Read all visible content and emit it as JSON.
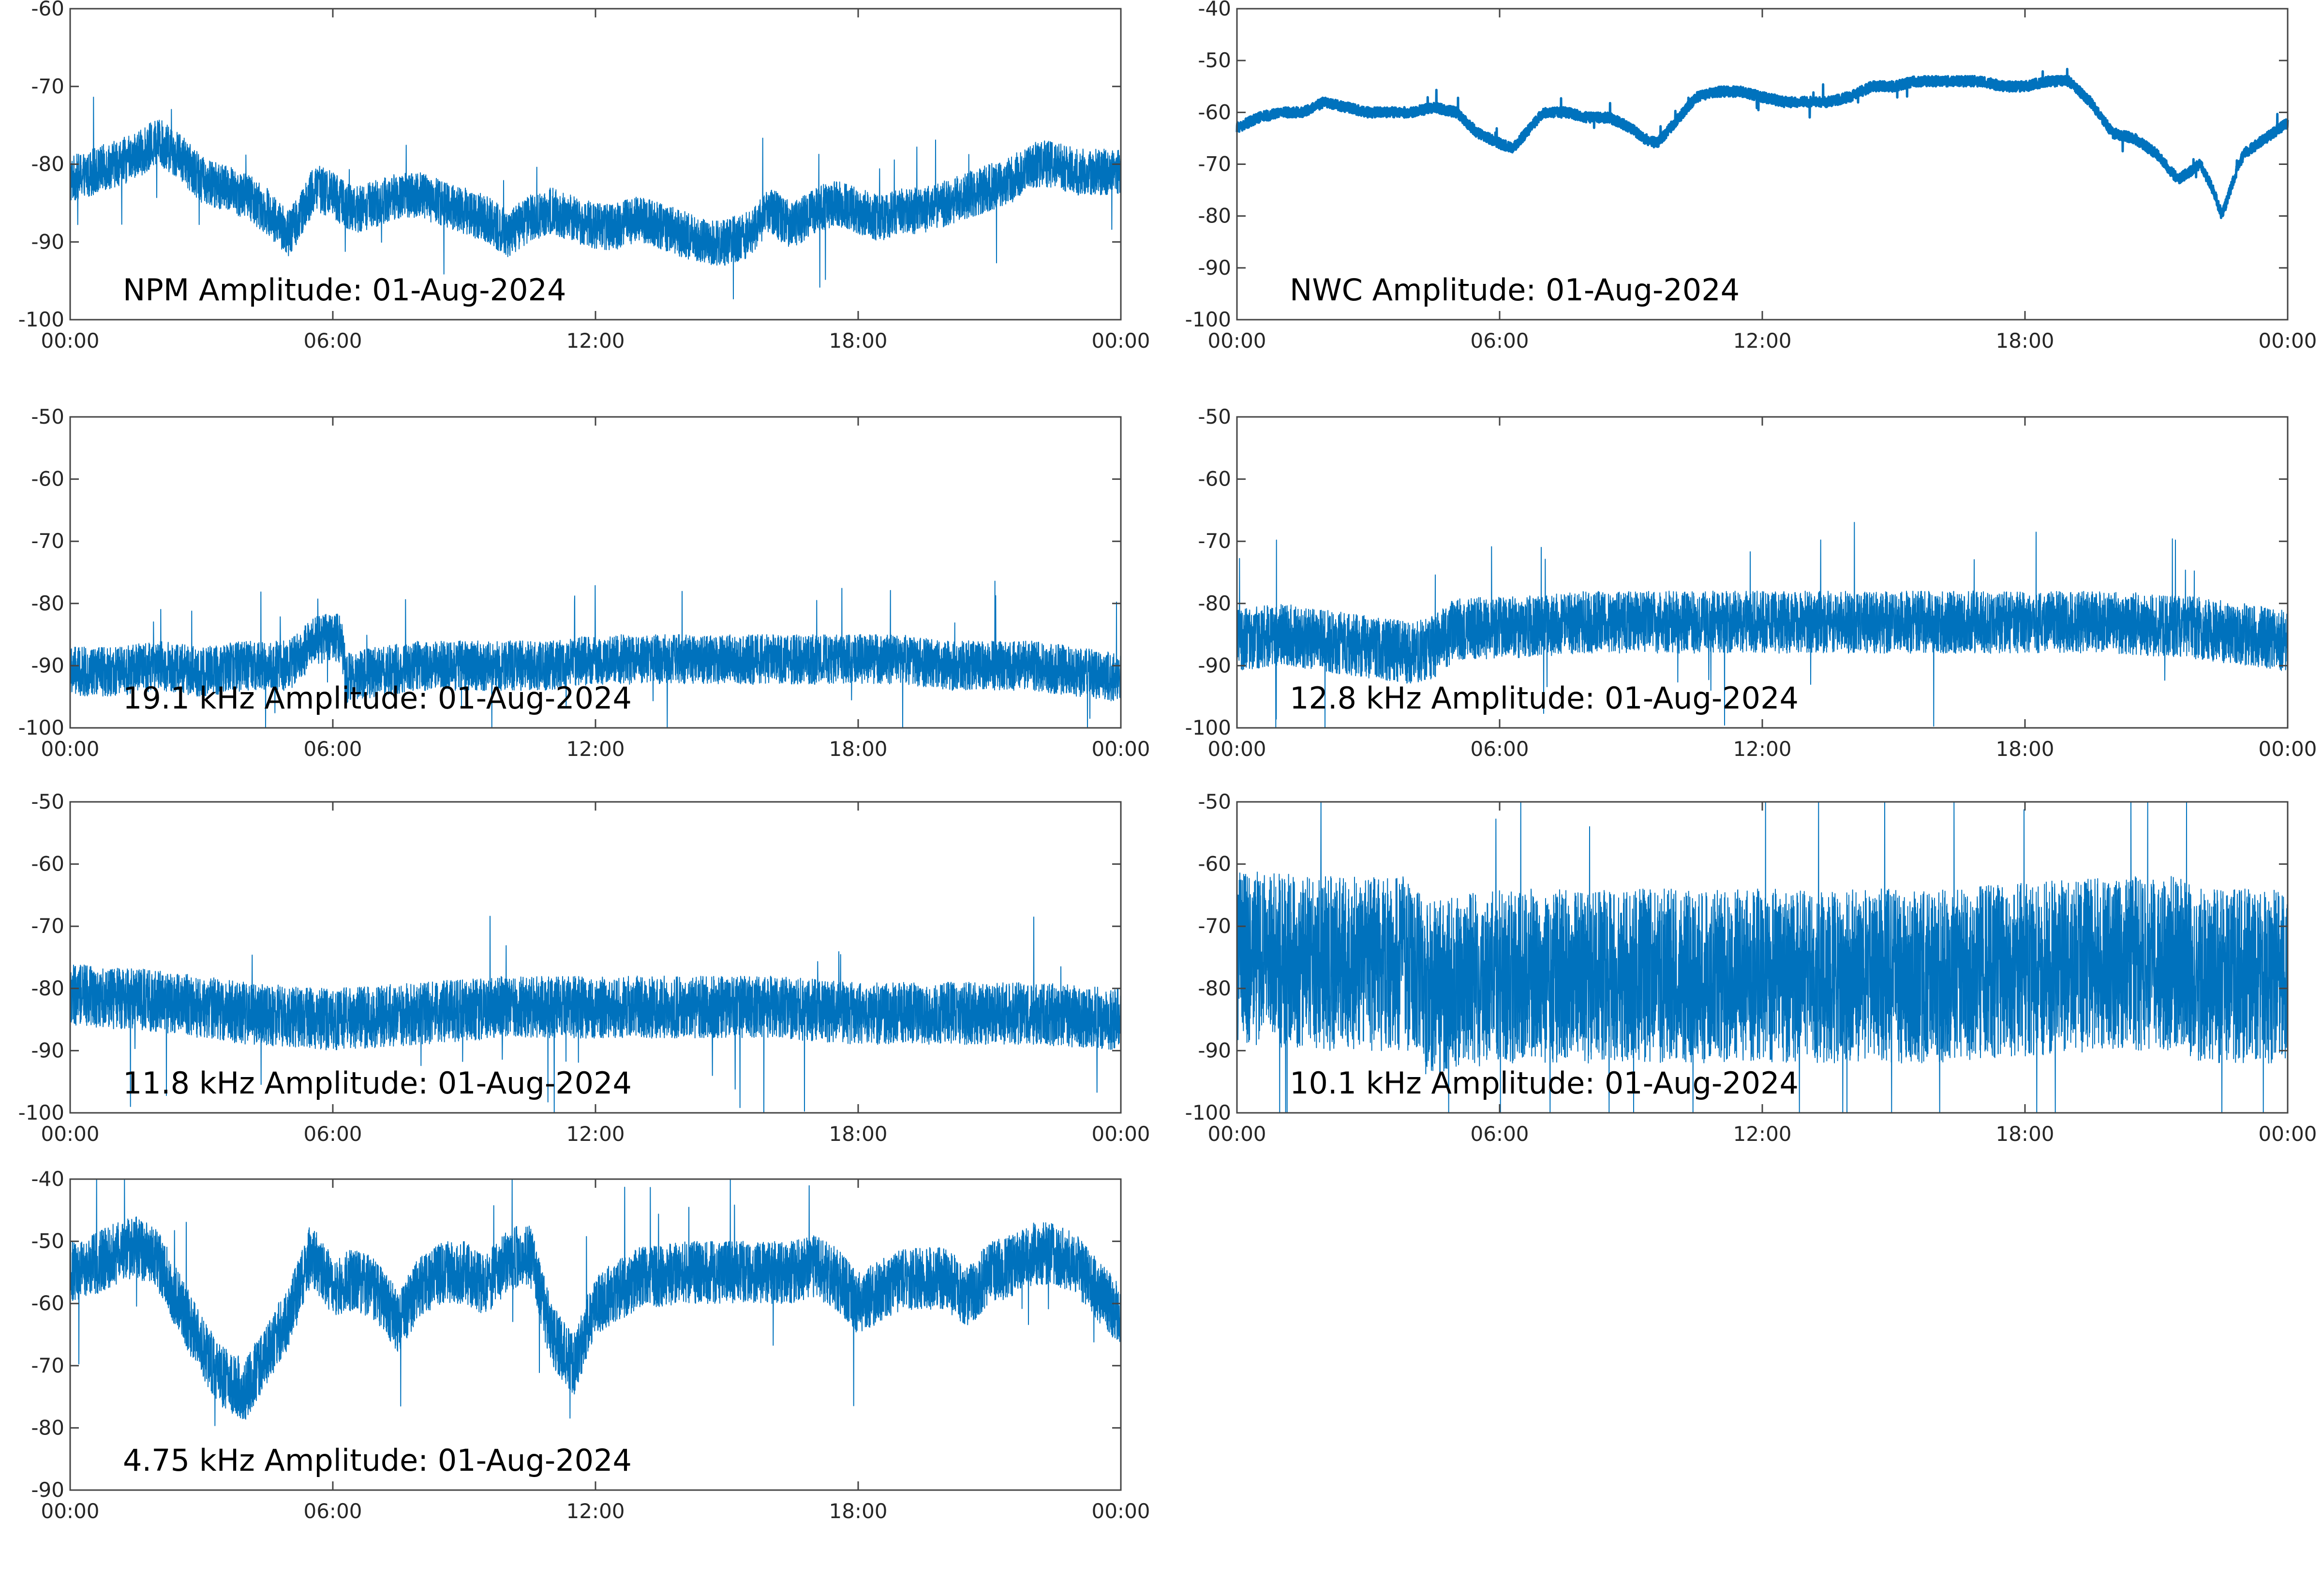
{
  "figure": {
    "line_color": "#0072bd",
    "background": "#ffffff",
    "axes_color": "#444444"
  },
  "chart_data": [
    {
      "type": "line",
      "title": "NPM Amplitude: 01-Aug-2024",
      "xlabel": "",
      "ylabel": "",
      "xticks": [
        "00:00",
        "06:00",
        "12:00",
        "18:00",
        "00:00"
      ],
      "xlim": [
        0,
        24
      ],
      "ylim": [
        -100,
        -60
      ],
      "yticks": [
        -100,
        -90,
        -80,
        -70,
        -60
      ],
      "grid": false,
      "series": [
        {
          "x": [
            0,
            0.5,
            1,
            1.5,
            2,
            2.5,
            3,
            3.5,
            4,
            4.5,
            5,
            5.3,
            5.6,
            6,
            6.5,
            7,
            7.5,
            8,
            8.5,
            9,
            9.5,
            10,
            10.5,
            11,
            11.5,
            12,
            12.5,
            13,
            13.5,
            14,
            14.5,
            15,
            15.5,
            16,
            16.5,
            17,
            17.5,
            18,
            18.5,
            19,
            19.5,
            20,
            20.5,
            21,
            21.5,
            22,
            22.5,
            23,
            23.5,
            24
          ],
          "y": [
            -82,
            -81,
            -80,
            -79,
            -77,
            -79,
            -82,
            -83,
            -84,
            -86,
            -89,
            -86,
            -83,
            -84,
            -86,
            -85,
            -84,
            -84,
            -85,
            -86,
            -87,
            -89,
            -87,
            -86,
            -87,
            -88,
            -88,
            -87,
            -88,
            -89,
            -90,
            -90,
            -89,
            -86,
            -88,
            -86,
            -85,
            -86,
            -87,
            -86,
            -86,
            -85,
            -84,
            -83,
            -82,
            -80,
            -80,
            -81,
            -81,
            -81
          ],
          "noise_band": 3
        }
      ]
    },
    {
      "type": "line",
      "title": "NWC Amplitude: 01-Aug-2024",
      "xlabel": "",
      "ylabel": "",
      "xticks": [
        "00:00",
        "06:00",
        "12:00",
        "18:00",
        "00:00"
      ],
      "xlim": [
        0,
        24
      ],
      "ylim": [
        -100,
        -40
      ],
      "yticks": [
        -100,
        -90,
        -80,
        -70,
        -60,
        -50,
        -40
      ],
      "grid": false,
      "series": [
        {
          "x": [
            0,
            0.5,
            1,
            1.5,
            2,
            2.5,
            3,
            3.5,
            4,
            4.5,
            5,
            5.5,
            6,
            6.3,
            6.6,
            7,
            7.5,
            8,
            8.5,
            9,
            9.3,
            9.6,
            10,
            10.5,
            11,
            11.5,
            12,
            12.5,
            13,
            13.5,
            14,
            14.5,
            15,
            15.5,
            16,
            16.5,
            17,
            17.5,
            18,
            18.5,
            19,
            19.5,
            20,
            20.5,
            21,
            21.5,
            22,
            22.3,
            22.5,
            22.8,
            23,
            23.5,
            24
          ],
          "y": [
            -63,
            -61,
            -60,
            -60,
            -58,
            -59,
            -60,
            -60,
            -60,
            -59,
            -60,
            -64,
            -66,
            -67,
            -64,
            -60,
            -60,
            -61,
            -61,
            -63,
            -65,
            -66,
            -62,
            -57,
            -56,
            -56,
            -57,
            -58,
            -58,
            -58,
            -57,
            -55,
            -55,
            -54,
            -54,
            -54,
            -54,
            -55,
            -55,
            -54,
            -54,
            -58,
            -64,
            -65,
            -68,
            -73,
            -70,
            -75,
            -80,
            -72,
            -68,
            -65,
            -62
          ],
          "noise_band": 1
        }
      ]
    },
    {
      "type": "line",
      "title": "19.1 kHz Amplitude: 01-Aug-2024",
      "xlabel": "",
      "ylabel": "",
      "xticks": [
        "00:00",
        "06:00",
        "12:00",
        "18:00",
        "00:00"
      ],
      "xlim": [
        0,
        24
      ],
      "ylim": [
        -100,
        -50
      ],
      "yticks": [
        -100,
        -90,
        -80,
        -70,
        -60,
        -50
      ],
      "grid": false,
      "series": [
        {
          "x": [
            0,
            1,
            2,
            3,
            4,
            5,
            5.6,
            6,
            6.2,
            6.3,
            7,
            8,
            9,
            10,
            11,
            12,
            13,
            14,
            15,
            16,
            17,
            18,
            19,
            20,
            21,
            22,
            23,
            24
          ],
          "y": [
            -91,
            -91,
            -90,
            -91,
            -90,
            -90,
            -86,
            -85,
            -86,
            -92,
            -91,
            -90,
            -90,
            -90,
            -90,
            -89,
            -89,
            -89,
            -89,
            -89,
            -89,
            -89,
            -89,
            -90,
            -90,
            -90,
            -91,
            -92
          ],
          "noise_band": 4
        }
      ]
    },
    {
      "type": "line",
      "title": "12.8 kHz Amplitude: 01-Aug-2024",
      "xlabel": "",
      "ylabel": "",
      "xticks": [
        "00:00",
        "06:00",
        "12:00",
        "18:00",
        "00:00"
      ],
      "xlim": [
        0,
        24
      ],
      "ylim": [
        -100,
        -50
      ],
      "yticks": [
        -100,
        -90,
        -80,
        -70,
        -60,
        -50
      ],
      "grid": false,
      "series": [
        {
          "x": [
            0,
            1,
            2,
            3,
            4,
            4.5,
            5,
            6,
            8,
            10,
            12,
            14,
            16,
            18,
            20,
            22,
            24
          ],
          "y": [
            -86,
            -85,
            -86,
            -87,
            -88,
            -87,
            -84,
            -84,
            -83,
            -83,
            -83,
            -83,
            -83,
            -83,
            -83,
            -84,
            -86
          ],
          "noise_band": 5
        }
      ]
    },
    {
      "type": "line",
      "title": "11.8 kHz Amplitude: 01-Aug-2024",
      "xlabel": "",
      "ylabel": "",
      "xticks": [
        "00:00",
        "06:00",
        "12:00",
        "18:00",
        "00:00"
      ],
      "xlim": [
        0,
        24
      ],
      "ylim": [
        -100,
        -50
      ],
      "yticks": [
        -100,
        -90,
        -80,
        -70,
        -60,
        -50
      ],
      "grid": false,
      "series": [
        {
          "x": [
            0,
            2,
            4,
            6,
            8,
            10,
            12,
            14,
            16,
            18,
            20,
            22,
            24
          ],
          "y": [
            -81,
            -82,
            -84,
            -85,
            -84,
            -83,
            -83,
            -83,
            -83,
            -84,
            -84,
            -84,
            -85
          ],
          "noise_band": 5
        }
      ]
    },
    {
      "type": "line",
      "title": "10.1 kHz Amplitude: 01-Aug-2024",
      "xlabel": "",
      "ylabel": "",
      "xticks": [
        "00:00",
        "06:00",
        "12:00",
        "18:00",
        "00:00"
      ],
      "xlim": [
        0,
        24
      ],
      "ylim": [
        -100,
        -50
      ],
      "yticks": [
        -100,
        -90,
        -80,
        -70,
        -60,
        -50
      ],
      "grid": false,
      "series": [
        {
          "x": [
            0,
            2,
            4,
            4.3,
            6,
            8,
            10,
            12,
            14,
            16,
            18,
            20,
            21.5,
            22,
            24
          ],
          "y": [
            -75,
            -76,
            -76,
            -80,
            -78,
            -78,
            -78,
            -78,
            -78,
            -78,
            -77,
            -76,
            -76,
            -78,
            -78
          ],
          "noise_band": 14
        }
      ]
    },
    {
      "type": "line",
      "title": "4.75 kHz Amplitude: 01-Aug-2024",
      "xlabel": "",
      "ylabel": "",
      "xticks": [
        "00:00",
        "06:00",
        "12:00",
        "18:00",
        "00:00"
      ],
      "xlim": [
        0,
        24
      ],
      "ylim": [
        -90,
        -40
      ],
      "yticks": [
        -90,
        -80,
        -70,
        -60,
        -50,
        -40
      ],
      "grid": false,
      "series": [
        {
          "x": [
            0,
            0.5,
            1,
            1.5,
            2,
            2.5,
            3,
            3.5,
            4,
            4.5,
            5,
            5.5,
            6,
            6.5,
            7,
            7.5,
            8,
            8.5,
            9,
            9.5,
            10,
            10.5,
            11,
            11.5,
            12,
            13,
            14,
            15,
            16,
            16.5,
            17,
            17.5,
            18,
            19,
            20,
            20.5,
            21,
            21.5,
            22,
            22.5,
            23,
            23.5,
            24
          ],
          "y": [
            -55,
            -54,
            -52,
            -51,
            -53,
            -60,
            -67,
            -72,
            -74,
            -68,
            -62,
            -52,
            -57,
            -56,
            -58,
            -63,
            -57,
            -55,
            -55,
            -57,
            -53,
            -52,
            -65,
            -70,
            -60,
            -56,
            -55,
            -55,
            -55,
            -55,
            -54,
            -56,
            -60,
            -56,
            -56,
            -59,
            -55,
            -54,
            -52,
            -52,
            -54,
            -58,
            -62
          ],
          "noise_band": 5
        }
      ]
    }
  ]
}
